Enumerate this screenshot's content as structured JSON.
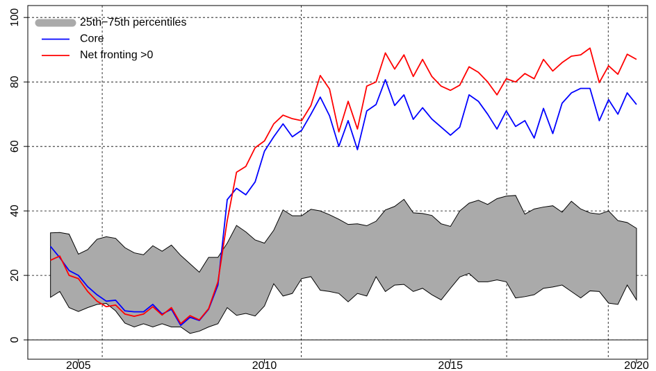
{
  "chart_data": {
    "type": "line",
    "x": [
      2004.25,
      2004.5,
      2004.75,
      2005.0,
      2005.25,
      2005.5,
      2005.75,
      2006.0,
      2006.25,
      2006.5,
      2006.75,
      2007.0,
      2007.25,
      2007.5,
      2007.75,
      2008.0,
      2008.25,
      2008.5,
      2008.75,
      2009.0,
      2009.25,
      2009.5,
      2009.75,
      2010.0,
      2010.25,
      2010.5,
      2010.75,
      2011.0,
      2011.25,
      2011.5,
      2011.75,
      2012.0,
      2012.25,
      2012.5,
      2012.75,
      2013.0,
      2013.25,
      2013.5,
      2013.75,
      2014.0,
      2014.25,
      2014.5,
      2014.75,
      2015.0,
      2015.25,
      2015.5,
      2015.75,
      2016.0,
      2016.25,
      2016.5,
      2016.75,
      2017.0,
      2017.25,
      2017.5,
      2017.75,
      2018.0,
      2018.25,
      2018.5,
      2018.75,
      2019.0,
      2019.25,
      2019.5,
      2019.75,
      2020.0
    ],
    "band": {
      "name": "25th−75th percentiles",
      "color": "#aaaaaa",
      "upper": [
        33.2,
        33.3,
        32.8,
        26.6,
        28,
        31.2,
        32,
        31.5,
        28.6,
        27,
        26.4,
        29.2,
        27.5,
        29.4,
        26.2,
        23.6,
        21,
        25.6,
        25.6,
        30,
        35.5,
        33.5,
        31,
        30,
        34,
        40.3,
        38.5,
        38.5,
        40.5,
        40,
        38.8,
        37.4,
        35.8,
        36,
        35.4,
        36.8,
        40.3,
        41.4,
        43.6,
        39.4,
        39.2,
        38.6,
        36,
        35.2,
        40,
        42.4,
        43.3,
        42,
        43.8,
        44.6,
        44.8,
        39,
        40.6,
        41.2,
        41.6,
        39.6,
        43,
        40.6,
        39.4,
        39,
        40,
        37,
        36.4,
        34.6
      ],
      "lower": [
        13.2,
        15,
        10,
        8.8,
        10,
        11,
        11.3,
        9,
        5.2,
        4,
        5,
        4,
        5,
        4,
        4,
        2,
        2.7,
        4,
        5,
        10,
        7.6,
        8.2,
        7.4,
        10.5,
        17.4,
        13.6,
        14.4,
        19,
        19.6,
        15.4,
        15,
        14.4,
        11.8,
        14.4,
        13.6,
        19.6,
        15,
        17,
        17.2,
        15,
        16,
        14,
        12.4,
        16,
        19.5,
        20.6,
        18,
        18,
        18.6,
        18,
        13,
        13.4,
        14,
        16,
        16.4,
        17,
        15,
        13,
        15.2,
        15,
        11.4,
        11,
        17,
        12.4
      ]
    },
    "series": [
      {
        "name": "Core",
        "color": "#0000ff",
        "values": [
          29,
          25.5,
          21.5,
          20,
          16.5,
          14,
          12,
          12.3,
          9,
          8.7,
          8.7,
          11,
          8,
          9.5,
          4.5,
          7,
          6,
          9.5,
          17,
          43.5,
          47,
          45,
          49,
          58.5,
          63,
          67,
          63,
          65,
          70,
          75.3,
          69.5,
          60,
          68,
          59,
          71,
          73,
          80.7,
          72.7,
          76,
          68.4,
          72,
          68.5,
          66,
          63.5,
          66,
          76,
          74,
          70,
          65.4,
          71,
          66.2,
          68,
          62.6,
          71.8,
          64,
          73.4,
          76.6,
          78,
          78,
          68,
          74.5,
          70,
          76.6,
          73
        ]
      },
      {
        "name": "Net fronting >0",
        "color": "#ff0000",
        "values": [
          24.7,
          26,
          20,
          19,
          15,
          12,
          10.3,
          10.8,
          8,
          7.3,
          8,
          10.3,
          7.7,
          10,
          5,
          7.5,
          6.2,
          9.7,
          18,
          37,
          52,
          53.8,
          59.6,
          61.7,
          67,
          69.7,
          68.6,
          68,
          72.7,
          82,
          77.8,
          64.5,
          74,
          65.4,
          78.7,
          80,
          89,
          84,
          88.4,
          81.7,
          87,
          81.7,
          78.7,
          77.4,
          79,
          84.7,
          83,
          80,
          76,
          81,
          80,
          82.6,
          81,
          87,
          83.4,
          86,
          88,
          88.4,
          90.5,
          79.8,
          85,
          82.4,
          88.6,
          87
        ]
      }
    ],
    "xlim": [
      2003.64,
      2020.3
    ],
    "ylim": [
      -6,
      103.7
    ],
    "xticks": [
      2005,
      2010,
      2015,
      2020
    ],
    "yticks": [
      0,
      20,
      40,
      60,
      80,
      100
    ],
    "vlines": [
      2005.64,
      2010.99,
      2016.51,
      2019.24
    ],
    "hline": 0,
    "grid": true,
    "legend": "top-left"
  }
}
